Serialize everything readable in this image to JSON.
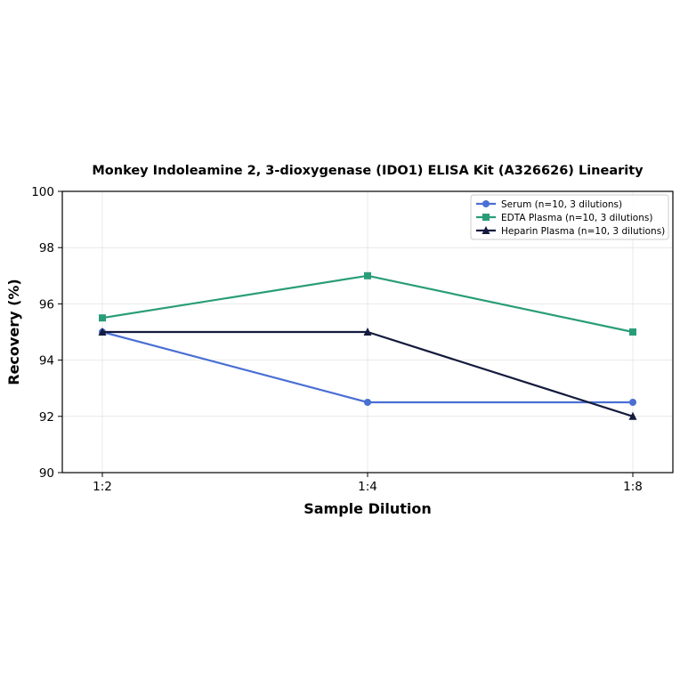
{
  "chart_data": {
    "type": "line",
    "title": "Monkey Indoleamine 2, 3-dioxygenase (IDO1) ELISA Kit (A326626) Linearity",
    "xlabel": "Sample Dilution",
    "ylabel": "Recovery (%)",
    "categories": [
      "1:2",
      "1:4",
      "1:8"
    ],
    "ylim": [
      90,
      100
    ],
    "yticks": [
      90,
      92,
      94,
      96,
      98,
      100
    ],
    "grid": true,
    "legend_position": "top-right",
    "series": [
      {
        "name": "Serum (n=10, 3 dilutions)",
        "values": [
          95,
          92.5,
          92.5
        ],
        "color": "#4a6fd4",
        "marker": "circle"
      },
      {
        "name": "EDTA Plasma (n=10, 3 dilutions)",
        "values": [
          95.5,
          97,
          95
        ],
        "color": "#2a9d78",
        "marker": "square"
      },
      {
        "name": "Heparin Plasma (n=10, 3 dilutions)",
        "values": [
          95,
          95,
          92
        ],
        "color": "#141b3d",
        "marker": "triangle"
      }
    ]
  }
}
